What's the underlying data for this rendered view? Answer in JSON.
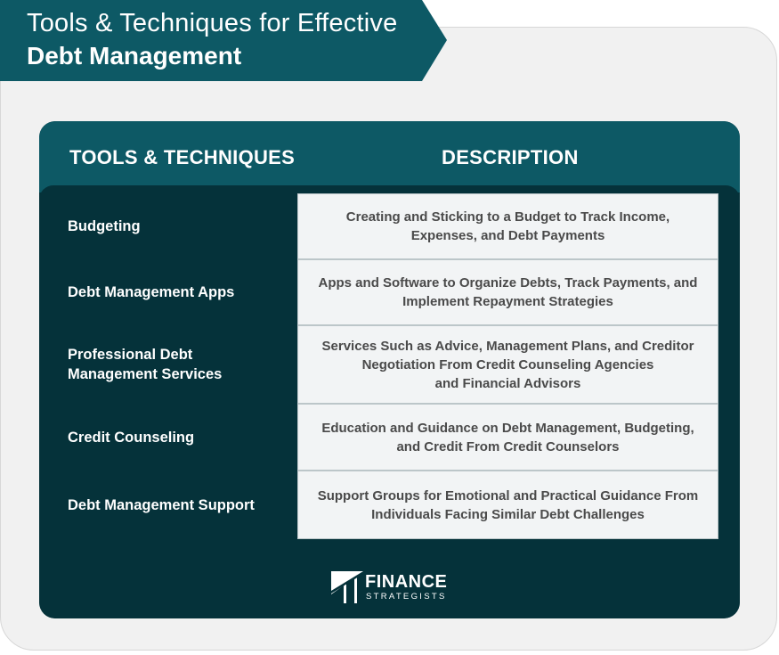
{
  "title": {
    "line1": "Tools & Techniques for Effective",
    "line2": "Debt Management"
  },
  "table": {
    "header_tools": "TOOLS & TECHNIQUES",
    "header_description": "DESCRIPTION",
    "rows": [
      {
        "tool": "Budgeting",
        "description": "Creating and Sticking to a Budget to Track Income,\nExpenses, and Debt Payments"
      },
      {
        "tool": "Debt Management Apps",
        "description": "Apps and Software to Organize Debts, Track Payments, and\nImplement Repayment Strategies"
      },
      {
        "tool": "Professional Debt\nManagement Services",
        "description": "Services Such as Advice, Management Plans, and Creditor\nNegotiation From Credit Counseling Agencies\nand Financial Advisors"
      },
      {
        "tool": "Credit Counseling",
        "description": "Education and Guidance on Debt Management, Budgeting,\nand Credit From Credit Counselors"
      },
      {
        "tool": "Debt Management Support",
        "description": "Support Groups for Emotional and Practical Guidance From\nIndividuals Facing Similar Debt Challenges"
      }
    ]
  },
  "logo": {
    "name": "FINANCE",
    "tagline": "STRATEGISTS"
  },
  "colors": {
    "banner": "#0d5965",
    "panel_dark": "#05323a",
    "header_teal": "#0d5965",
    "cell_bg": "#f2f4f5",
    "cell_text": "#4a4a4a"
  }
}
